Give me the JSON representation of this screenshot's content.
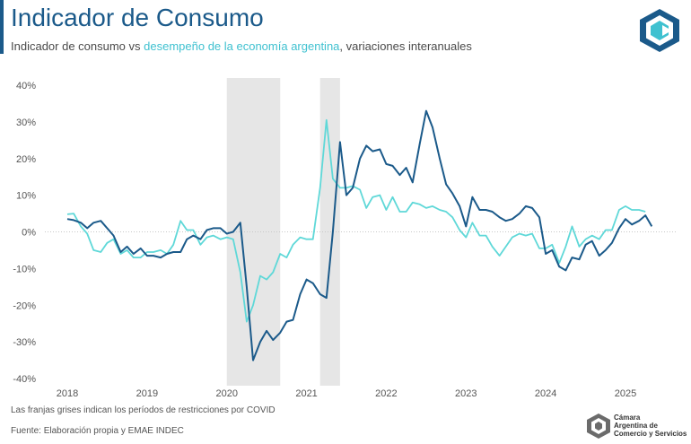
{
  "header": {
    "title": "Indicador de Consumo",
    "subtitle_part1": "Indicador de consumo vs ",
    "subtitle_highlight": "desempeño de la economía argentina",
    "subtitle_part2": ", variaciones interanuales"
  },
  "footer": {
    "note": "Las franjas grises indican los períodos de restricciones por COVID",
    "source": "Fuente: Elaboración propia y EMAE INDEC",
    "org_line1": "Cámara",
    "org_line2": "Argentina de",
    "org_line3": "Comercio y Servicios"
  },
  "colors": {
    "consumo": "#1b5a8a",
    "emae": "#5fd8d8",
    "band": "#e6e6e6",
    "title": "#1b5a8a"
  },
  "icons": [
    "cac-logo-icon",
    "cac-footer-logo-icon"
  ],
  "chart_data": {
    "type": "line",
    "x_tick_labels": [
      "2018",
      "2019",
      "2020",
      "2021",
      "2022",
      "2023",
      "2024",
      "2025"
    ],
    "y_tick_labels": [
      "40%",
      "30%",
      "20%",
      "10%",
      "0%",
      "-10%",
      "-20%",
      "-30%",
      "-40%"
    ],
    "ylim": [
      -40,
      40
    ],
    "xlim": [
      2018,
      2025.5
    ],
    "grid": false,
    "zero_line": true,
    "shaded_periods": [
      [
        2020.0,
        2020.67
      ],
      [
        2021.17,
        2021.42
      ]
    ],
    "series": [
      {
        "key": "consumo",
        "values": [
          [
            2018.0,
            3.5
          ],
          [
            2018.08,
            3.2
          ],
          [
            2018.17,
            2.5
          ],
          [
            2018.25,
            1.0
          ],
          [
            2018.33,
            2.5
          ],
          [
            2018.42,
            3.0
          ],
          [
            2018.5,
            1.0
          ],
          [
            2018.58,
            -1.0
          ],
          [
            2018.67,
            -5.5
          ],
          [
            2018.75,
            -4.0
          ],
          [
            2018.83,
            -6.0
          ],
          [
            2018.92,
            -4.5
          ],
          [
            2019.0,
            -6.5
          ],
          [
            2019.08,
            -6.5
          ],
          [
            2019.17,
            -7.0
          ],
          [
            2019.25,
            -6.0
          ],
          [
            2019.33,
            -5.5
          ],
          [
            2019.42,
            -5.5
          ],
          [
            2019.5,
            -2.0
          ],
          [
            2019.58,
            -1.0
          ],
          [
            2019.67,
            -2.0
          ],
          [
            2019.75,
            0.5
          ],
          [
            2019.83,
            1.0
          ],
          [
            2019.92,
            1.0
          ],
          [
            2020.0,
            -0.5
          ],
          [
            2020.08,
            0.0
          ],
          [
            2020.17,
            2.5
          ],
          [
            2020.25,
            -15.0
          ],
          [
            2020.33,
            -35.0
          ],
          [
            2020.42,
            -30.0
          ],
          [
            2020.5,
            -27.0
          ],
          [
            2020.58,
            -29.5
          ],
          [
            2020.67,
            -27.5
          ],
          [
            2020.75,
            -24.5
          ],
          [
            2020.83,
            -24.0
          ],
          [
            2020.92,
            -17.0
          ],
          [
            2021.0,
            -13.0
          ],
          [
            2021.08,
            -14.0
          ],
          [
            2021.17,
            -17.0
          ],
          [
            2021.25,
            -18.0
          ],
          [
            2021.33,
            0.0
          ],
          [
            2021.42,
            24.5
          ],
          [
            2021.5,
            10.0
          ],
          [
            2021.58,
            12.0
          ],
          [
            2021.67,
            20.0
          ],
          [
            2021.75,
            23.5
          ],
          [
            2021.83,
            22.0
          ],
          [
            2021.92,
            22.5
          ],
          [
            2022.0,
            18.5
          ],
          [
            2022.08,
            18.0
          ],
          [
            2022.17,
            15.5
          ],
          [
            2022.25,
            17.5
          ],
          [
            2022.33,
            13.5
          ],
          [
            2022.42,
            24.0
          ],
          [
            2022.5,
            33.0
          ],
          [
            2022.58,
            28.5
          ],
          [
            2022.67,
            20.0
          ],
          [
            2022.75,
            13.0
          ],
          [
            2022.83,
            10.5
          ],
          [
            2022.92,
            7.0
          ],
          [
            2023.0,
            1.5
          ],
          [
            2023.08,
            9.5
          ],
          [
            2023.17,
            6.0
          ],
          [
            2023.25,
            6.0
          ],
          [
            2023.33,
            5.5
          ],
          [
            2023.42,
            4.0
          ],
          [
            2023.5,
            3.0
          ],
          [
            2023.58,
            3.5
          ],
          [
            2023.67,
            5.0
          ],
          [
            2023.75,
            7.0
          ],
          [
            2023.83,
            6.5
          ],
          [
            2023.92,
            4.0
          ],
          [
            2024.0,
            -6.0
          ],
          [
            2024.08,
            -5.0
          ],
          [
            2024.17,
            -9.5
          ],
          [
            2024.25,
            -10.5
          ],
          [
            2024.33,
            -7.0
          ],
          [
            2024.42,
            -7.5
          ],
          [
            2024.5,
            -3.5
          ],
          [
            2024.58,
            -2.5
          ],
          [
            2024.67,
            -6.5
          ],
          [
            2024.75,
            -5.0
          ],
          [
            2024.83,
            -3.0
          ],
          [
            2024.92,
            1.0
          ],
          [
            2025.0,
            3.5
          ],
          [
            2025.08,
            2.0
          ],
          [
            2025.17,
            3.0
          ],
          [
            2025.25,
            4.5
          ],
          [
            2025.33,
            1.5
          ]
        ]
      },
      {
        "key": "emae",
        "values": [
          [
            2018.0,
            4.8
          ],
          [
            2018.08,
            5.0
          ],
          [
            2018.17,
            1.5
          ],
          [
            2018.25,
            -0.5
          ],
          [
            2018.33,
            -5.0
          ],
          [
            2018.42,
            -5.5
          ],
          [
            2018.5,
            -3.0
          ],
          [
            2018.58,
            -2.0
          ],
          [
            2018.67,
            -6.0
          ],
          [
            2018.75,
            -5.0
          ],
          [
            2018.83,
            -7.0
          ],
          [
            2018.92,
            -7.0
          ],
          [
            2019.0,
            -5.5
          ],
          [
            2019.08,
            -5.5
          ],
          [
            2019.17,
            -5.0
          ],
          [
            2019.25,
            -6.0
          ],
          [
            2019.33,
            -3.5
          ],
          [
            2019.42,
            3.0
          ],
          [
            2019.5,
            0.5
          ],
          [
            2019.58,
            0.5
          ],
          [
            2019.67,
            -3.5
          ],
          [
            2019.75,
            -1.5
          ],
          [
            2019.83,
            -1.0
          ],
          [
            2019.92,
            -2.0
          ],
          [
            2020.0,
            -1.5
          ],
          [
            2020.08,
            -2.0
          ],
          [
            2020.17,
            -11.0
          ],
          [
            2020.25,
            -24.5
          ],
          [
            2020.33,
            -20.0
          ],
          [
            2020.42,
            -12.0
          ],
          [
            2020.5,
            -13.0
          ],
          [
            2020.58,
            -11.0
          ],
          [
            2020.67,
            -6.0
          ],
          [
            2020.75,
            -7.0
          ],
          [
            2020.83,
            -3.5
          ],
          [
            2020.92,
            -1.5
          ],
          [
            2021.0,
            -2.0
          ],
          [
            2021.08,
            -2.0
          ],
          [
            2021.17,
            12.0
          ],
          [
            2021.25,
            30.5
          ],
          [
            2021.33,
            14.5
          ],
          [
            2021.42,
            12.0
          ],
          [
            2021.5,
            12.0
          ],
          [
            2021.58,
            12.5
          ],
          [
            2021.67,
            11.5
          ],
          [
            2021.75,
            6.5
          ],
          [
            2021.83,
            9.5
          ],
          [
            2021.92,
            10.0
          ],
          [
            2022.0,
            6.0
          ],
          [
            2022.08,
            9.5
          ],
          [
            2022.17,
            5.5
          ],
          [
            2022.25,
            5.5
          ],
          [
            2022.33,
            8.0
          ],
          [
            2022.42,
            7.5
          ],
          [
            2022.5,
            6.5
          ],
          [
            2022.58,
            7.0
          ],
          [
            2022.67,
            6.0
          ],
          [
            2022.75,
            5.5
          ],
          [
            2022.83,
            4.0
          ],
          [
            2022.92,
            0.5
          ],
          [
            2023.0,
            -1.5
          ],
          [
            2023.08,
            2.5
          ],
          [
            2023.17,
            -1.0
          ],
          [
            2023.25,
            -1.0
          ],
          [
            2023.33,
            -4.0
          ],
          [
            2023.42,
            -6.5
          ],
          [
            2023.5,
            -4.0
          ],
          [
            2023.58,
            -1.5
          ],
          [
            2023.67,
            -0.5
          ],
          [
            2023.75,
            -1.0
          ],
          [
            2023.83,
            -0.5
          ],
          [
            2023.92,
            -4.5
          ],
          [
            2024.0,
            -4.5
          ],
          [
            2024.08,
            -3.5
          ],
          [
            2024.17,
            -8.5
          ],
          [
            2024.25,
            -4.0
          ],
          [
            2024.33,
            1.5
          ],
          [
            2024.42,
            -4.0
          ],
          [
            2024.5,
            -2.0
          ],
          [
            2024.58,
            -1.0
          ],
          [
            2024.67,
            -2.0
          ],
          [
            2024.75,
            0.5
          ],
          [
            2024.83,
            0.5
          ],
          [
            2024.92,
            6.0
          ],
          [
            2025.0,
            7.0
          ],
          [
            2025.08,
            6.0
          ],
          [
            2025.17,
            6.0
          ],
          [
            2025.25,
            5.5
          ]
        ]
      }
    ]
  }
}
